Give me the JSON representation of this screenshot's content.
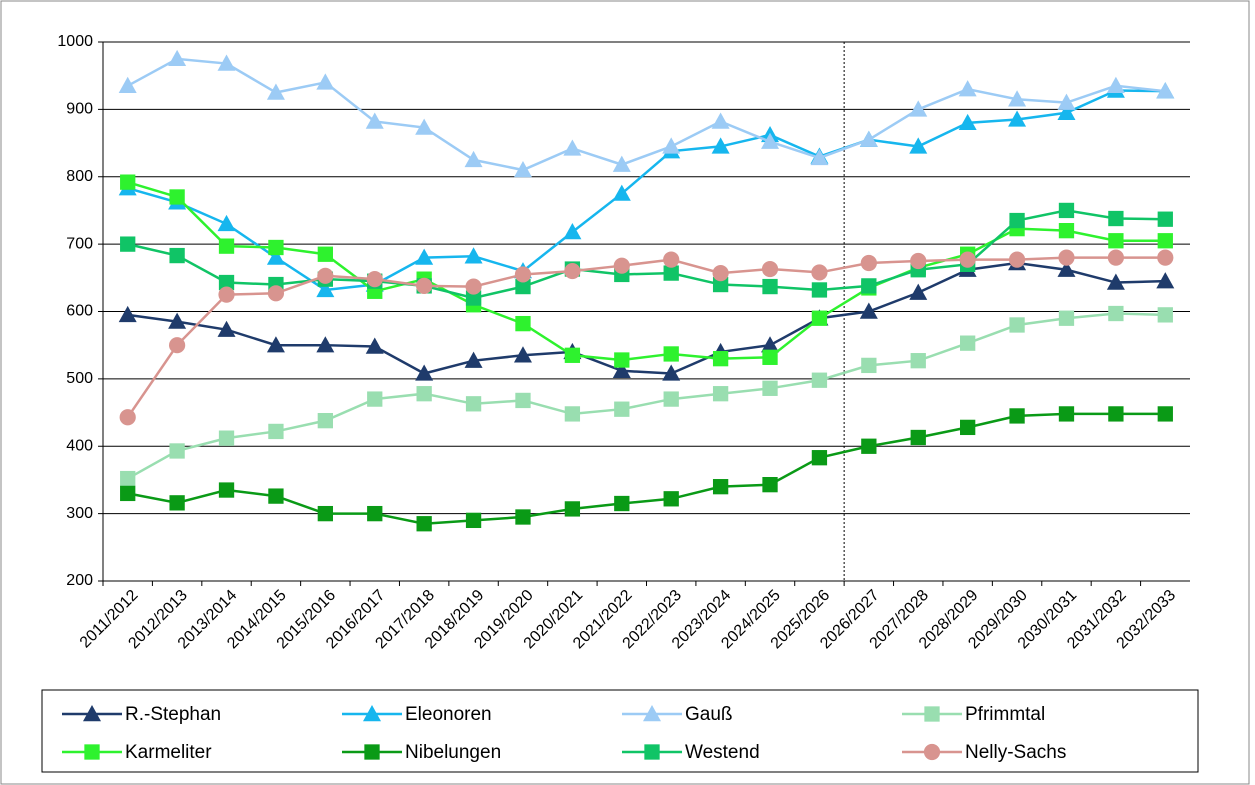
{
  "chart_data": {
    "type": "line",
    "categories": [
      "2011/2012",
      "2012/2013",
      "2013/2014",
      "2014/2015",
      "2015/2016",
      "2016/2017",
      "2017/2018",
      "2018/2019",
      "2019/2020",
      "2020/2021",
      "2021/2022",
      "2022/2023",
      "2023/2024",
      "2024/2025",
      "2025/2026",
      "2026/2027",
      "2027/2028",
      "2028/2029",
      "2029/2030",
      "2030/2031",
      "2031/2032",
      "2032/2033"
    ],
    "ylim": [
      200,
      1000
    ],
    "yticks": [
      200,
      300,
      400,
      500,
      600,
      700,
      800,
      900,
      1000
    ],
    "grid": true,
    "series": [
      {
        "name": "R.-Stephan",
        "color": "#1f3b6b",
        "marker": "triangle",
        "values": [
          595,
          585,
          573,
          550,
          550,
          548,
          508,
          527,
          535,
          540,
          512,
          508,
          540,
          550,
          590,
          600,
          628,
          662,
          672,
          662,
          643,
          645
        ]
      },
      {
        "name": "Eleonoren",
        "color": "#16b6ee",
        "marker": "triangle",
        "values": [
          783,
          762,
          730,
          680,
          632,
          640,
          680,
          682,
          660,
          718,
          775,
          838,
          845,
          862,
          830,
          855,
          845,
          880,
          885,
          895,
          928,
          927
        ]
      },
      {
        "name": "Gauß",
        "color": "#9ccbf5",
        "marker": "triangle",
        "values": [
          935,
          975,
          968,
          925,
          940,
          882,
          873,
          825,
          810,
          842,
          818,
          845,
          882,
          852,
          828,
          855,
          900,
          930,
          915,
          910,
          935,
          927
        ]
      },
      {
        "name": "Pfrimmtal",
        "color": "#99deb0",
        "marker": "square",
        "values": [
          352,
          393,
          412,
          422,
          438,
          470,
          478,
          463,
          468,
          448,
          455,
          470,
          478,
          486,
          498,
          520,
          527,
          553,
          580,
          590,
          597,
          595
        ]
      },
      {
        "name": "Karmeliter",
        "color": "#2ef22e",
        "marker": "square",
        "values": [
          792,
          770,
          697,
          695,
          685,
          630,
          648,
          610,
          582,
          535,
          528,
          537,
          530,
          532,
          590,
          635,
          665,
          685,
          723,
          720,
          705,
          705
        ]
      },
      {
        "name": "Nibelungen",
        "color": "#0a9a16",
        "marker": "square",
        "values": [
          330,
          316,
          335,
          326,
          300,
          300,
          285,
          290,
          295,
          307,
          315,
          322,
          340,
          343,
          383,
          400,
          413,
          428,
          445,
          448,
          448,
          448
        ]
      },
      {
        "name": "Westend",
        "color": "#10c466",
        "marker": "square",
        "values": [
          700,
          683,
          643,
          640,
          648,
          645,
          638,
          620,
          637,
          663,
          655,
          657,
          640,
          637,
          632,
          638,
          662,
          670,
          735,
          750,
          738,
          737
        ]
      },
      {
        "name": "Nelly-Sachs",
        "color": "#d8948f",
        "marker": "circle",
        "values": [
          443,
          550,
          625,
          627,
          653,
          648,
          638,
          637,
          655,
          660,
          668,
          677,
          657,
          663,
          658,
          672,
          675,
          677,
          677,
          680,
          680,
          680
        ]
      }
    ]
  }
}
